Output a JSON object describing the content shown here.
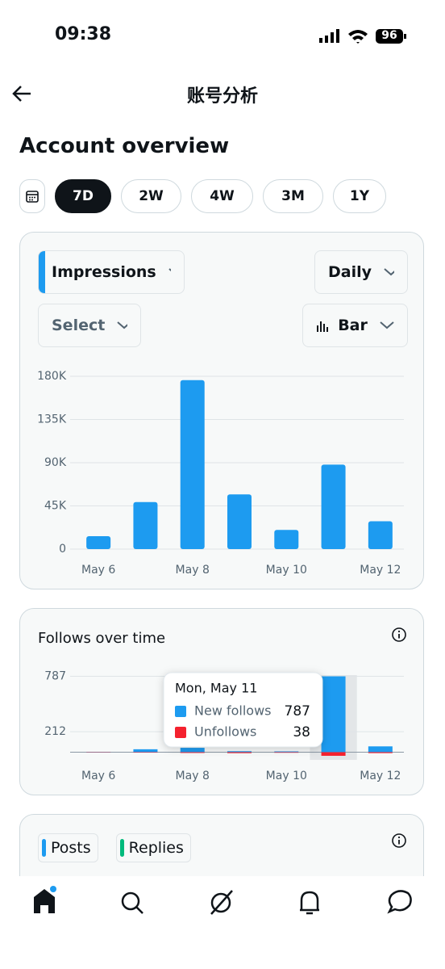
{
  "status_bar": {
    "time": "09:38",
    "battery": "96"
  },
  "header": {
    "title": "账号分析"
  },
  "overview": {
    "title": "Account overview",
    "ranges": [
      "7D",
      "2W",
      "4W",
      "3M",
      "1Y"
    ]
  },
  "impressions_card": {
    "metric": "Impressions",
    "interval": "Daily",
    "select": "Select",
    "chart_style": "Bar",
    "chart_data": {
      "type": "bar",
      "categories": [
        "May 6",
        null,
        "May 8",
        null,
        "May 10",
        null,
        "May 12"
      ],
      "values": [
        13500,
        49000,
        176000,
        57000,
        20000,
        88000,
        29000
      ],
      "color": "#1d9bf0",
      "ylim": [
        0,
        180000
      ],
      "yticks": [
        0,
        {
          "value": 45000,
          "label": "45K"
        },
        {
          "value": 90000,
          "label": "90K"
        },
        {
          "value": 135000,
          "label": "135K"
        },
        {
          "value": 180000,
          "label": "180K"
        }
      ],
      "grid": true
    }
  },
  "follows_card": {
    "title": "Follows over time",
    "chart_data": {
      "type": "bar",
      "categories": [
        "May 6",
        null,
        "May 8",
        null,
        "May 10",
        null,
        "May 12"
      ],
      "series": [
        {
          "name": "New follows",
          "color": "#1d9bf0",
          "values": [
            2,
            30,
            45,
            10,
            8,
            787,
            60
          ]
        },
        {
          "name": "Unfollows",
          "color": "#f4212e",
          "values": [
            3,
            5,
            8,
            10,
            6,
            38,
            10
          ]
        }
      ],
      "ylim": [
        -80,
        800
      ],
      "yticks": [
        212,
        787
      ],
      "grid": true,
      "tooltip": {
        "title": "Mon, May 11"
      }
    }
  },
  "posts_card": {
    "tabs": [
      "Posts",
      "Replies"
    ]
  }
}
